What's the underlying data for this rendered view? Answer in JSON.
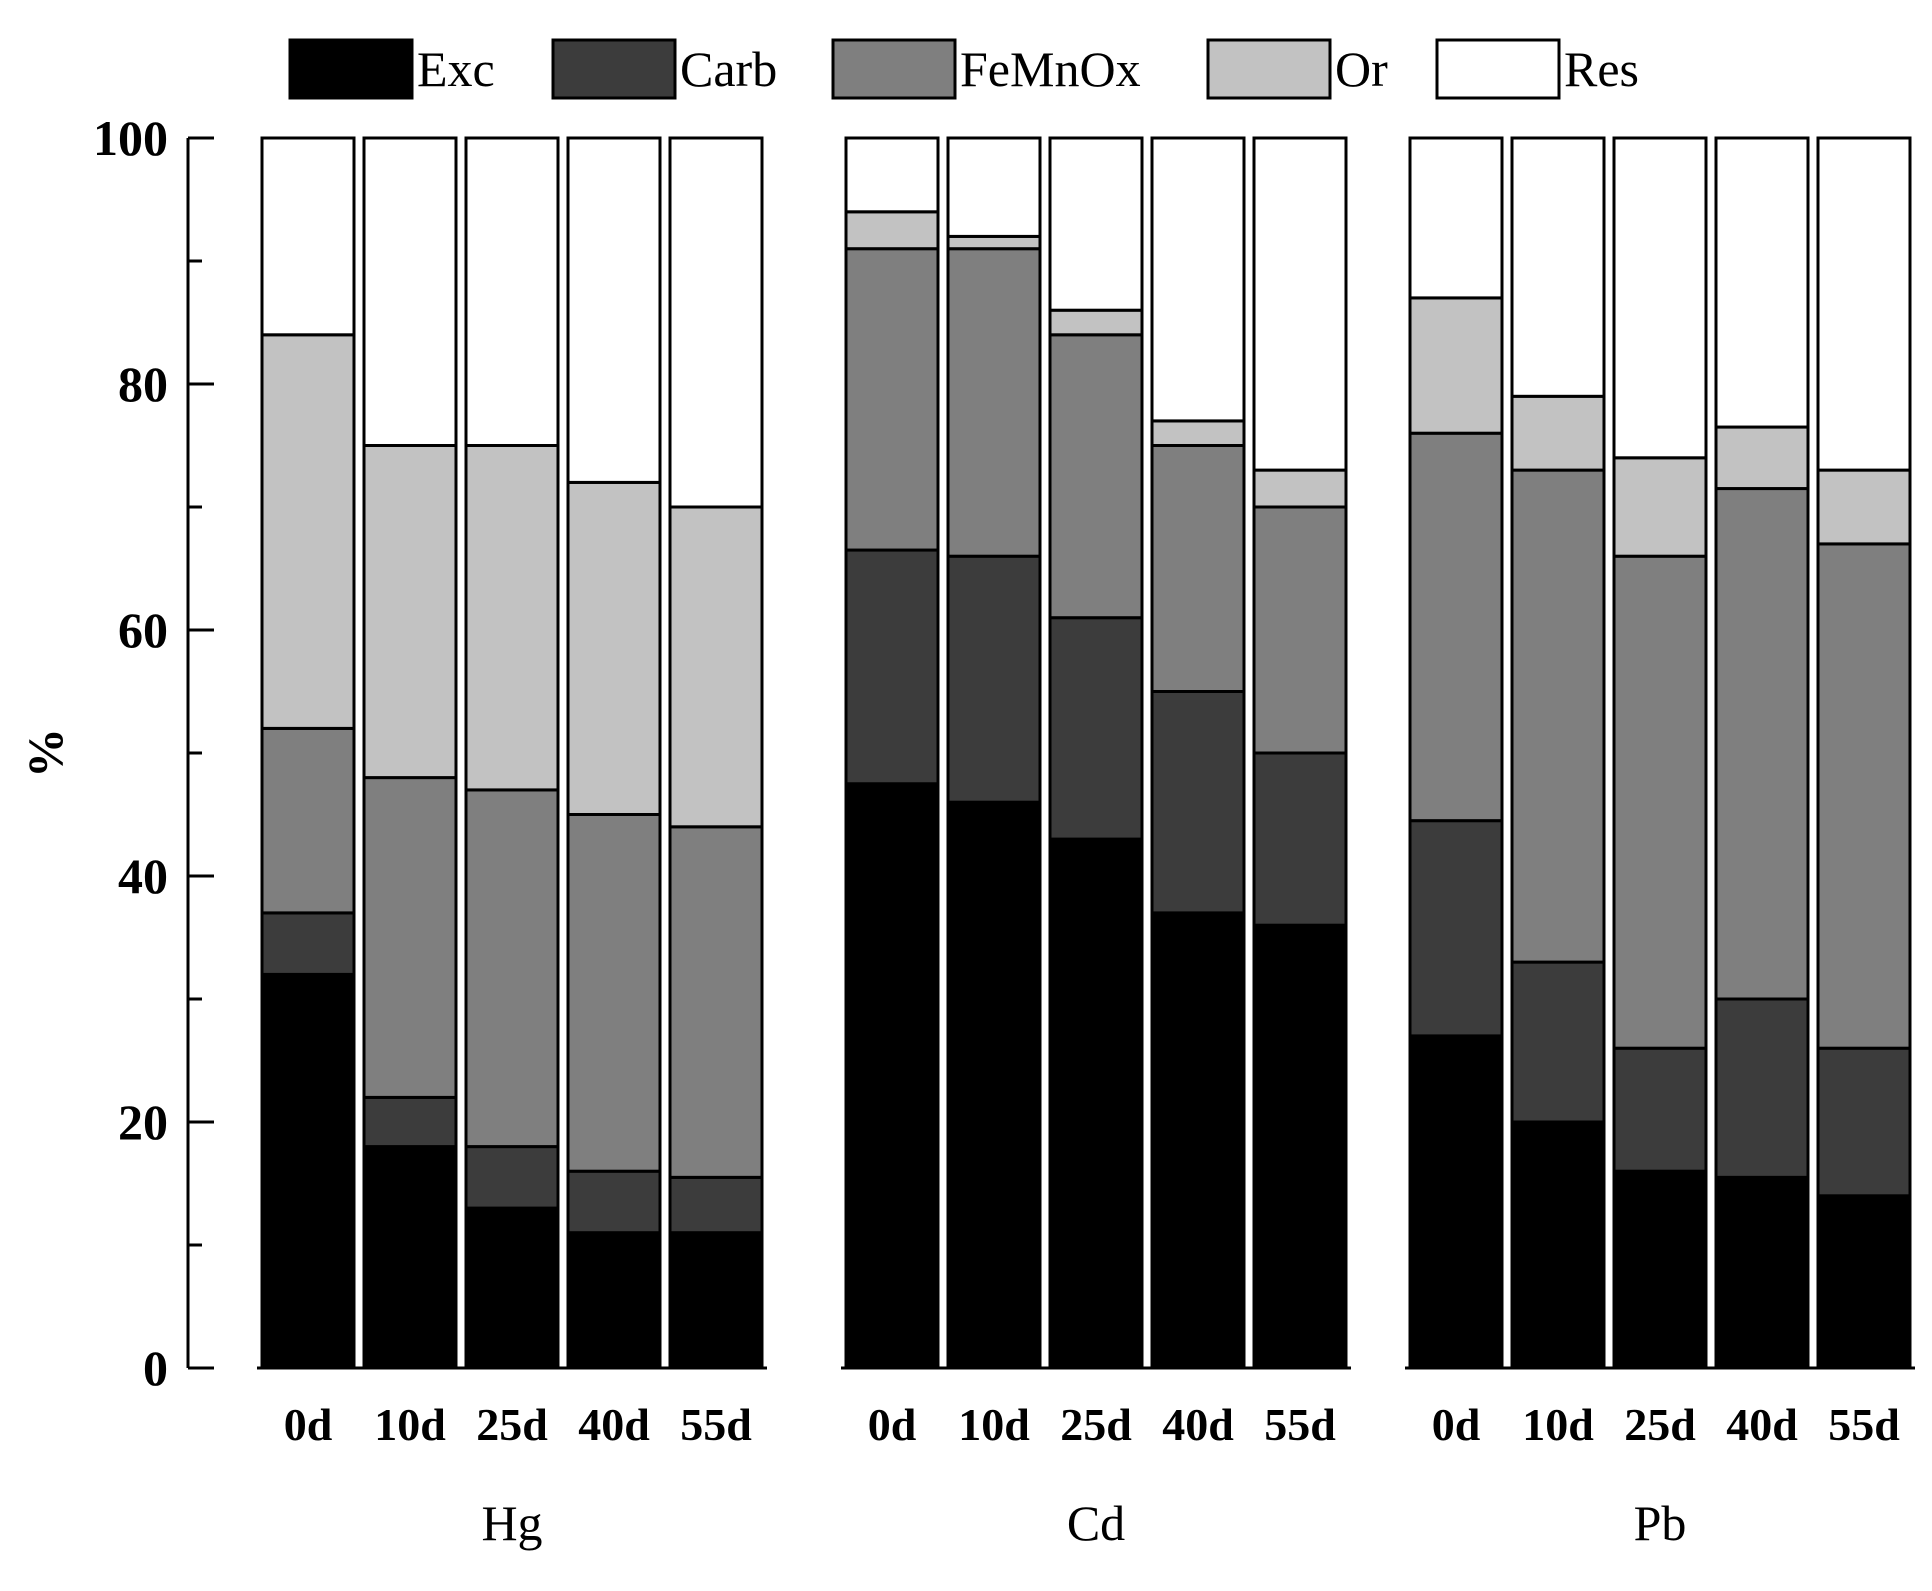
{
  "chart_data": {
    "type": "bar",
    "stacked": true,
    "ylabel": "%",
    "xlabel": "",
    "ylim": [
      0,
      100
    ],
    "yticks": [
      0,
      20,
      40,
      60,
      80,
      100
    ],
    "categories": [
      "0d",
      "10d",
      "25d",
      "40d",
      "55d"
    ],
    "series_names": [
      "Exc",
      "Carb",
      "FeMnOx",
      "Or",
      "Res"
    ],
    "colors": [
      "#000000",
      "#3c3c3c",
      "#7f7f7f",
      "#c2c2c2",
      "#ffffff"
    ],
    "legend_position": "top",
    "groups": [
      {
        "name": "Hg",
        "bars": [
          [
            32,
            5,
            15,
            32,
            16
          ],
          [
            18,
            4,
            26,
            27,
            25
          ],
          [
            13,
            5,
            29,
            28,
            25
          ],
          [
            11,
            5,
            29,
            27,
            28
          ],
          [
            11,
            4.5,
            28.5,
            26,
            30
          ]
        ]
      },
      {
        "name": "Cd",
        "bars": [
          [
            47.5,
            19,
            24.5,
            3,
            6
          ],
          [
            46,
            20,
            25,
            1,
            8
          ],
          [
            43,
            18,
            23,
            2,
            14
          ],
          [
            37,
            18,
            20,
            2,
            23
          ],
          [
            36,
            14,
            20,
            3,
            27
          ]
        ]
      },
      {
        "name": "Pb",
        "bars": [
          [
            27,
            17.5,
            31.5,
            11,
            13
          ],
          [
            20,
            13,
            40,
            6,
            21
          ],
          [
            16,
            10,
            40,
            8,
            26
          ],
          [
            15.5,
            14.5,
            41.5,
            5,
            23.5
          ],
          [
            14,
            12,
            41,
            6,
            27
          ]
        ]
      }
    ]
  }
}
